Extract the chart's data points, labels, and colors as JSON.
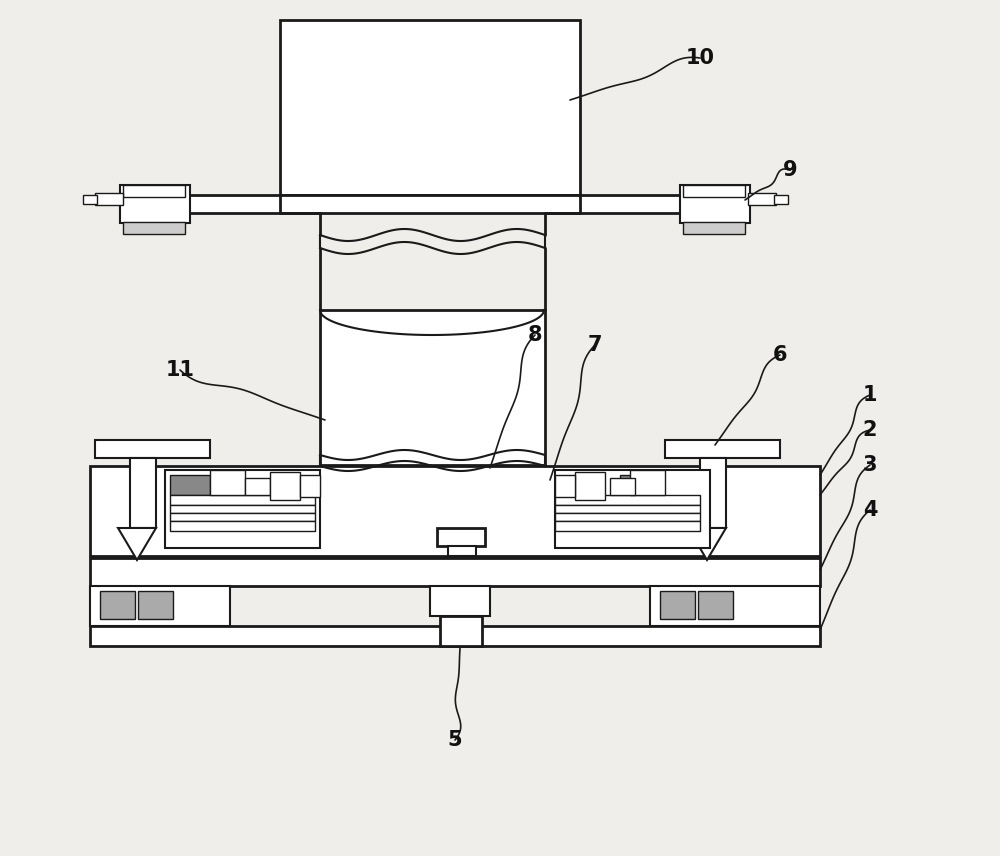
{
  "bg_color": "#f0eeea",
  "line_color": "#1a1a1a",
  "lw_thin": 1.0,
  "lw_med": 1.5,
  "lw_thick": 2.0,
  "label_fs": 15,
  "label_color": "#111111"
}
